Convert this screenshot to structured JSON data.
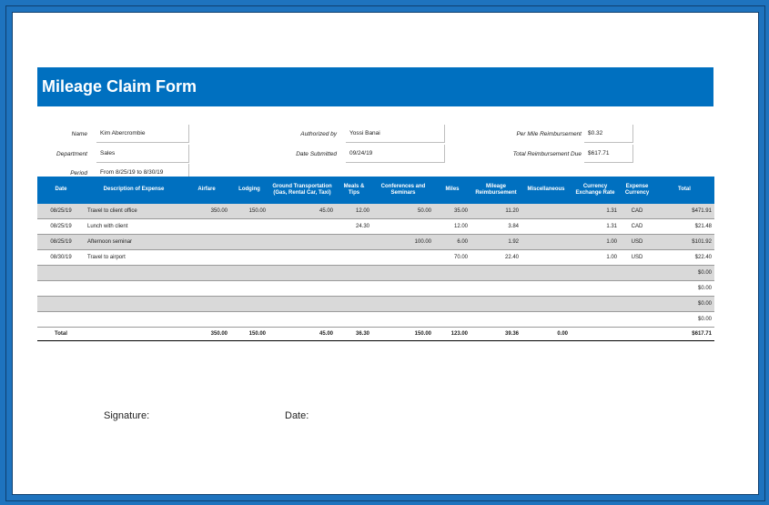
{
  "form": {
    "title": "Mileage Claim Form",
    "name_label": "Name",
    "name_value": "Kim Abercrombie",
    "department_label": "Department",
    "department_value": "Sales",
    "period_label": "Period",
    "period_value": "From 8/25/19 to 8/30/19",
    "authorized_label": "Authorized by",
    "authorized_value": "Yossi Banai",
    "date_submitted_label": "Date Submitted",
    "date_submitted_value": "09/24/19",
    "per_mile_label": "Per Mile Reimbursement",
    "per_mile_value": "$0.32",
    "total_reimb_label": "Total Reimbursement Due",
    "total_reimb_value": "$617.71"
  },
  "table": {
    "headers": [
      "Date",
      "Description of Expense",
      "Airfare",
      "Lodging",
      "Ground Transportation (Gas, Rental Car, Taxi)",
      "Meals & Tips",
      "Conferences and Seminars",
      "Miles",
      "Mileage Reimbursement",
      "Miscellaneous",
      "Currency Exchange Rate",
      "Expense Currency",
      "Total"
    ],
    "rows": [
      [
        "08/25/19",
        "Travel to client office",
        "350.00",
        "150.00",
        "45.00",
        "12.00",
        "50.00",
        "35.00",
        "11.20",
        "",
        "1.31",
        "CAD",
        "$471.91"
      ],
      [
        "08/25/19",
        "Lunch with client",
        "",
        "",
        "",
        "24.30",
        "",
        "12.00",
        "3.84",
        "",
        "1.31",
        "CAD",
        "$21.48"
      ],
      [
        "08/25/19",
        "Afternoon seminar",
        "",
        "",
        "",
        "",
        "100.00",
        "6.00",
        "1.92",
        "",
        "1.00",
        "USD",
        "$101.92"
      ],
      [
        "08/30/19",
        "Travel to airport",
        "",
        "",
        "",
        "",
        "",
        "70.00",
        "22.40",
        "",
        "1.00",
        "USD",
        "$22.40"
      ],
      [
        "",
        "",
        "",
        "",
        "",
        "",
        "",
        "",
        "",
        "",
        "",
        "",
        "$0.00"
      ],
      [
        "",
        "",
        "",
        "",
        "",
        "",
        "",
        "",
        "",
        "",
        "",
        "",
        "$0.00"
      ],
      [
        "",
        "",
        "",
        "",
        "",
        "",
        "",
        "",
        "",
        "",
        "",
        "",
        "$0.00"
      ],
      [
        "",
        "",
        "",
        "",
        "",
        "",
        "",
        "",
        "",
        "",
        "",
        "",
        "$0.00"
      ]
    ],
    "totals": [
      "Total",
      "",
      "350.00",
      "150.00",
      "45.00",
      "36.30",
      "150.00",
      "123.00",
      "39.36",
      "0.00",
      "",
      "",
      "$617.71"
    ]
  },
  "footer": {
    "signature_label": "Signature:",
    "date_label": "Date:"
  }
}
